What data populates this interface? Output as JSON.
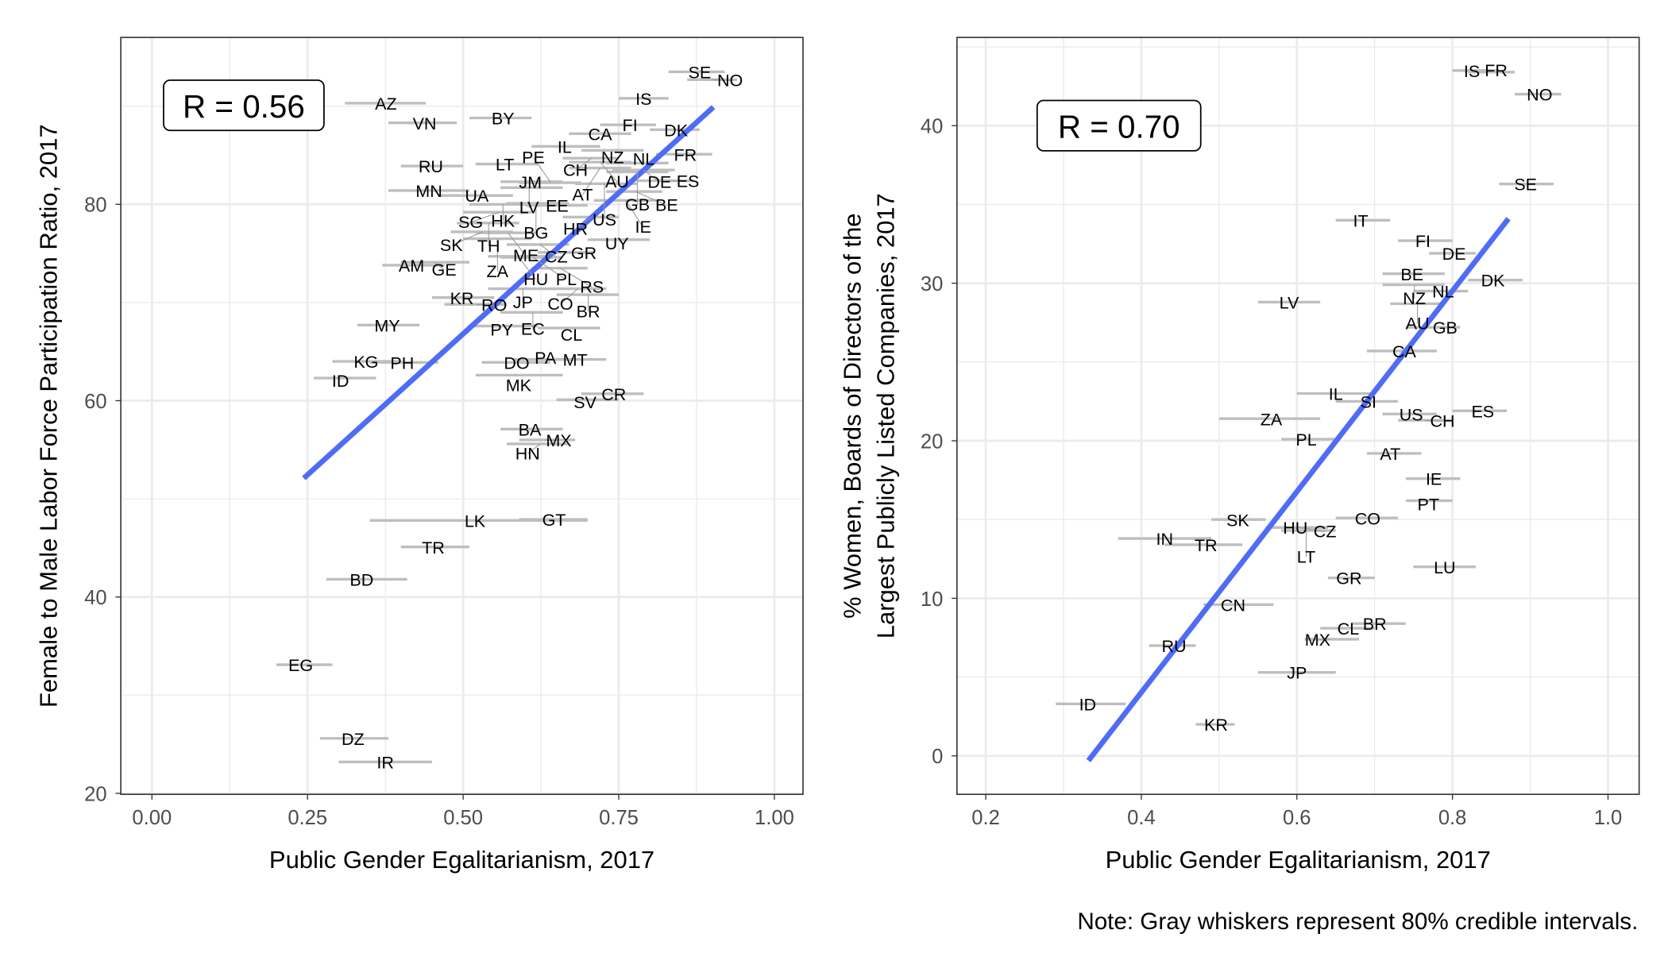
{
  "note": "Note: Gray whiskers represent 80% credible intervals.",
  "colors": {
    "fit_line": "#4F6CF5",
    "whisker": "#BEBEBE",
    "grid": "#EBEBEB"
  },
  "chart_data": [
    {
      "type": "scatter",
      "xlabel": "Public Gender Egalitarianism, 2017",
      "ylabel": "Female to Male Labor Force Participation Ratio, 2017",
      "annotation": "R = 0.56",
      "xlim": [
        -0.05,
        1.046
      ],
      "ylim": [
        19.9,
        97
      ],
      "xticks": [
        0,
        0.25,
        0.5,
        0.75,
        1.0
      ],
      "xtick_labels": [
        "0.00",
        "0.25",
        "0.50",
        "0.75",
        "1.00"
      ],
      "yticks": [
        20,
        40,
        60,
        80
      ],
      "ytick_labels": [
        "20",
        "40",
        "60",
        "80"
      ],
      "grid": true,
      "fit_line": [
        [
          0.244,
          52.1
        ],
        [
          0.902,
          89.9
        ]
      ],
      "points": [
        [
          "SE",
          0.88,
          93.5,
          0.83,
          0.92
        ],
        [
          "NO",
          0.9,
          92.7,
          0.86,
          0.94
        ],
        [
          "IS",
          0.79,
          90.8,
          0.75,
          0.83
        ],
        [
          "AZ",
          0.376,
          90.3,
          0.31,
          0.44
        ],
        [
          "VN",
          0.438,
          88.3,
          0.38,
          0.49
        ],
        [
          "BY",
          0.564,
          88.8,
          0.51,
          0.61
        ],
        [
          "FI",
          0.768,
          88.1,
          0.72,
          0.81
        ],
        [
          "DK",
          0.842,
          87.6,
          0.8,
          0.88
        ],
        [
          "CA",
          0.72,
          87.2,
          0.67,
          0.77
        ],
        [
          "IL",
          0.663,
          85.9,
          0.61,
          0.72
        ],
        [
          "NZ",
          0.74,
          85.5,
          0.69,
          0.79
        ],
        [
          "FR",
          0.857,
          85.1,
          0.81,
          0.9
        ],
        [
          "RU",
          0.448,
          83.9,
          0.4,
          0.5
        ],
        [
          "LT",
          0.567,
          84.1,
          0.52,
          0.62
        ],
        [
          "CH",
          0.706,
          84.7,
          0.66,
          0.75
        ],
        [
          "AU",
          0.72,
          84.3,
          0.67,
          0.77
        ],
        [
          "AT",
          0.72,
          83.7,
          0.67,
          0.77
        ],
        [
          "NL",
          0.78,
          84.2,
          0.73,
          0.83
        ],
        [
          "DE",
          0.79,
          83.5,
          0.74,
          0.84
        ],
        [
          "GB",
          0.78,
          83.3,
          0.73,
          0.83
        ],
        [
          "MN",
          0.445,
          81.4,
          0.38,
          0.51
        ],
        [
          "UA",
          0.522,
          80.9,
          0.46,
          0.58
        ],
        [
          "JM",
          0.608,
          82.3,
          0.56,
          0.66
        ],
        [
          "LV",
          0.606,
          81.7,
          0.56,
          0.66
        ],
        [
          "PE",
          0.641,
          82.2,
          0.59,
          0.69
        ],
        [
          "US",
          0.727,
          82.1,
          0.68,
          0.78
        ],
        [
          "BE",
          0.777,
          81.3,
          0.73,
          0.82
        ],
        [
          "ES",
          0.825,
          82.4,
          0.78,
          0.87
        ],
        [
          "IE",
          0.761,
          80.4,
          0.71,
          0.81
        ],
        [
          "HK",
          0.564,
          80.0,
          0.51,
          0.62
        ],
        [
          "BG",
          0.617,
          80.1,
          0.57,
          0.67
        ],
        [
          "EE",
          0.651,
          79.9,
          0.6,
          0.7
        ],
        [
          "SG",
          0.558,
          79.2,
          0.5,
          0.61
        ],
        [
          "TH",
          0.541,
          78.1,
          0.49,
          0.59
        ],
        [
          "HR",
          0.706,
          78.7,
          0.66,
          0.75
        ],
        [
          "SK",
          0.531,
          77.2,
          0.48,
          0.58
        ],
        [
          "ME",
          0.572,
          77.1,
          0.52,
          0.62
        ],
        [
          "ZA",
          0.555,
          76.5,
          0.5,
          0.61
        ],
        [
          "UY",
          0.747,
          76.4,
          0.7,
          0.8
        ],
        [
          "CZ",
          0.624,
          75.9,
          0.57,
          0.67
        ],
        [
          "GR",
          0.665,
          75.1,
          0.62,
          0.71
        ],
        [
          "HU",
          0.588,
          74.7,
          0.54,
          0.64
        ],
        [
          "PL",
          0.612,
          74.6,
          0.56,
          0.66
        ],
        [
          "AM",
          0.417,
          73.8,
          0.37,
          0.47
        ],
        [
          "GE",
          0.454,
          74.1,
          0.4,
          0.51
        ],
        [
          "RS",
          0.656,
          73.5,
          0.61,
          0.7
        ],
        [
          "JP",
          0.596,
          71.4,
          0.54,
          0.65
        ],
        [
          "CO",
          0.684,
          71.4,
          0.64,
          0.73
        ],
        [
          "BR",
          0.701,
          70.8,
          0.65,
          0.75
        ],
        [
          "KR",
          0.498,
          70.5,
          0.45,
          0.55
        ],
        [
          "RO",
          0.521,
          69.8,
          0.47,
          0.57
        ],
        [
          "EC",
          0.612,
          69.0,
          0.56,
          0.66
        ],
        [
          "MY",
          0.378,
          67.7,
          0.33,
          0.43
        ],
        [
          "PY",
          0.562,
          67.6,
          0.51,
          0.62
        ],
        [
          "CL",
          0.674,
          67.4,
          0.62,
          0.72
        ],
        [
          "KG",
          0.344,
          64.0,
          0.29,
          0.4
        ],
        [
          "PH",
          0.402,
          63.9,
          0.35,
          0.46
        ],
        [
          "DO",
          0.586,
          63.9,
          0.53,
          0.64
        ],
        [
          "PA",
          0.627,
          64.2,
          0.58,
          0.68
        ],
        [
          "MT",
          0.68,
          64.2,
          0.63,
          0.73
        ],
        [
          "MK",
          0.589,
          62.6,
          0.52,
          0.66
        ],
        [
          "ID",
          0.308,
          62.3,
          0.26,
          0.36
        ],
        [
          "CR",
          0.742,
          60.7,
          0.69,
          0.79
        ],
        [
          "SV",
          0.701,
          60.1,
          0.65,
          0.75
        ],
        [
          "BA",
          0.607,
          57.1,
          0.56,
          0.66
        ],
        [
          "MX",
          0.632,
          56.0,
          0.59,
          0.68
        ],
        [
          "HN",
          0.624,
          55.6,
          0.57,
          0.67
        ],
        [
          "LK",
          0.519,
          47.8,
          0.35,
          0.7
        ],
        [
          "GT",
          0.646,
          47.9,
          0.59,
          0.7
        ],
        [
          "TR",
          0.452,
          45.1,
          0.4,
          0.51
        ],
        [
          "BD",
          0.337,
          41.8,
          0.28,
          0.41
        ],
        [
          "EG",
          0.239,
          33.1,
          0.2,
          0.29
        ],
        [
          "DZ",
          0.323,
          25.6,
          0.27,
          0.38
        ],
        [
          "IR",
          0.375,
          23.2,
          0.3,
          0.45
        ]
      ]
    },
    {
      "type": "scatter",
      "xlabel": "Public Gender Egalitarianism, 2017",
      "ylabel": [
        "% Women, Boards of Directors of the",
        "Largest Publicly Listed Companies, 2017"
      ],
      "annotation": "R = 0.70",
      "xlim": [
        0.163,
        1.04
      ],
      "ylim": [
        -2.44,
        45.6
      ],
      "xticks": [
        0.2,
        0.4,
        0.6,
        0.8,
        1.0
      ],
      "xtick_labels": [
        "0.2",
        "0.4",
        "0.6",
        "0.8",
        "1.0"
      ],
      "yticks": [
        0,
        10,
        20,
        30,
        40
      ],
      "ytick_labels": [
        "0",
        "10",
        "20",
        "30",
        "40"
      ],
      "grid": true,
      "fit_line": [
        [
          0.332,
          -0.3
        ],
        [
          0.872,
          34.1
        ]
      ],
      "points": [
        [
          "IS",
          0.825,
          43.5,
          0.8,
          0.86
        ],
        [
          "FR",
          0.852,
          43.4,
          0.82,
          0.88
        ],
        [
          "NO",
          0.912,
          42.0,
          0.88,
          0.94
        ],
        [
          "SE",
          0.894,
          36.3,
          0.86,
          0.93
        ],
        [
          "IT",
          0.682,
          34.0,
          0.65,
          0.72
        ],
        [
          "FI",
          0.762,
          32.7,
          0.73,
          0.8
        ],
        [
          "DE",
          0.802,
          31.9,
          0.77,
          0.83
        ],
        [
          "BE",
          0.748,
          30.6,
          0.71,
          0.79
        ],
        [
          "DK",
          0.852,
          30.2,
          0.82,
          0.89
        ],
        [
          "NZ",
          0.751,
          29.9,
          0.71,
          0.79
        ],
        [
          "NL",
          0.788,
          29.5,
          0.75,
          0.82
        ],
        [
          "AU",
          0.755,
          28.7,
          0.72,
          0.79
        ],
        [
          "LV",
          0.59,
          28.8,
          0.55,
          0.63
        ],
        [
          "GB",
          0.779,
          27.2,
          0.74,
          0.81
        ],
        [
          "CA",
          0.738,
          25.7,
          0.69,
          0.78
        ],
        [
          "IL",
          0.65,
          23.0,
          0.6,
          0.7
        ],
        [
          "SI",
          0.692,
          22.5,
          0.65,
          0.73
        ],
        [
          "ES",
          0.839,
          21.9,
          0.8,
          0.87
        ],
        [
          "US",
          0.747,
          21.7,
          0.71,
          0.78
        ],
        [
          "CH",
          0.764,
          21.3,
          0.73,
          0.8
        ],
        [
          "ZA",
          0.567,
          21.4,
          0.5,
          0.63
        ],
        [
          "PL",
          0.612,
          20.1,
          0.58,
          0.65
        ],
        [
          "AT",
          0.72,
          19.2,
          0.69,
          0.76
        ],
        [
          "IE",
          0.776,
          17.6,
          0.74,
          0.81
        ],
        [
          "PT",
          0.769,
          16.2,
          0.74,
          0.8
        ],
        [
          "SK",
          0.524,
          15.0,
          0.49,
          0.56
        ],
        [
          "CO",
          0.691,
          15.1,
          0.65,
          0.73
        ],
        [
          "HU",
          0.598,
          14.5,
          0.56,
          0.63
        ],
        [
          "CZ",
          0.602,
          14.5,
          0.57,
          0.64
        ],
        [
          "LT",
          0.612,
          14.3,
          0.58,
          0.65
        ],
        [
          "IN",
          0.43,
          13.8,
          0.37,
          0.49
        ],
        [
          "TR",
          0.483,
          13.4,
          0.43,
          0.53
        ],
        [
          "LU",
          0.79,
          12.0,
          0.75,
          0.83
        ],
        [
          "GR",
          0.667,
          11.3,
          0.64,
          0.7
        ],
        [
          "CN",
          0.518,
          9.6,
          0.48,
          0.57
        ],
        [
          "BR",
          0.7,
          8.4,
          0.67,
          0.74
        ],
        [
          "CL",
          0.666,
          8.1,
          0.63,
          0.7
        ],
        [
          "MX",
          0.644,
          7.4,
          0.61,
          0.68
        ],
        [
          "RU",
          0.442,
          7.0,
          0.41,
          0.47
        ],
        [
          "JP",
          0.6,
          5.3,
          0.55,
          0.65
        ],
        [
          "ID",
          0.331,
          3.3,
          0.29,
          0.38
        ],
        [
          "KR",
          0.496,
          2.0,
          0.47,
          0.52
        ]
      ]
    }
  ]
}
